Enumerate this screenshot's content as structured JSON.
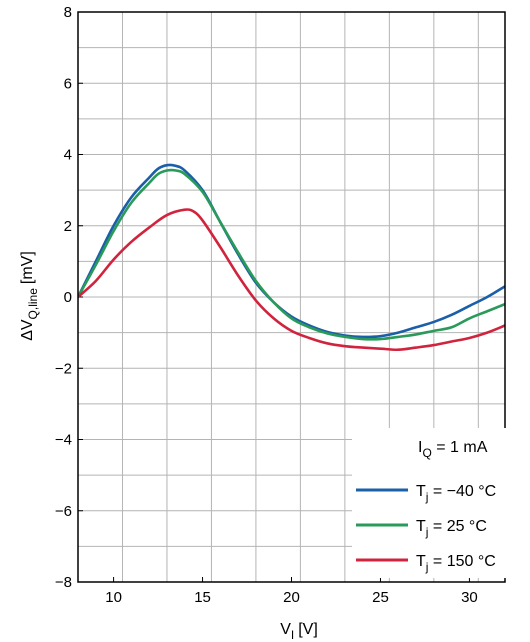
{
  "chart_data": {
    "type": "line",
    "xlabel": {
      "main": "V",
      "sub": "I",
      "unit": "[V]"
    },
    "ylabel": {
      "main": "ΔV",
      "sub": "Q,line",
      "unit": "[mV]"
    },
    "xlim": [
      8,
      32
    ],
    "ylim": [
      -8,
      8
    ],
    "x_ticks": [
      {
        "value": 10,
        "label": "10"
      },
      {
        "value": 15,
        "label": "15"
      },
      {
        "value": 20,
        "label": "20"
      },
      {
        "value": 25,
        "label": "25"
      },
      {
        "value": 30,
        "label": "30"
      }
    ],
    "y_ticks": [
      {
        "value": 8,
        "label": "8"
      },
      {
        "value": 6,
        "label": "6"
      },
      {
        "value": 4,
        "label": "4"
      },
      {
        "value": 2,
        "label": "2"
      },
      {
        "value": 0,
        "label": "0"
      },
      {
        "value": -2,
        "label": "−2"
      },
      {
        "value": -4,
        "label": "−4"
      },
      {
        "value": -6,
        "label": "−6"
      },
      {
        "value": -8,
        "label": "−8"
      }
    ],
    "grid": true,
    "legend": {
      "placement": "bottom-right",
      "header": {
        "main": "I",
        "sub": "Q",
        "rest": " = 1 mA"
      }
    },
    "series": [
      {
        "name": "T_j = −40 °C",
        "label_main": "T",
        "label_sub": "j",
        "label_rest": " = −40 °C",
        "color": "#1a5fa8",
        "x": [
          8,
          9,
          10,
          11,
          12,
          12.5,
          13,
          13.5,
          14,
          15,
          16,
          17,
          18,
          19,
          20,
          21,
          22,
          23,
          24,
          25,
          26,
          27,
          28,
          29,
          30,
          31,
          32
        ],
        "y": [
          0,
          1.0,
          2.0,
          2.8,
          3.35,
          3.6,
          3.7,
          3.68,
          3.55,
          3.0,
          2.1,
          1.2,
          0.4,
          -0.15,
          -0.55,
          -0.8,
          -0.98,
          -1.08,
          -1.12,
          -1.1,
          -1.0,
          -0.85,
          -0.7,
          -0.5,
          -0.25,
          0.0,
          0.3
        ]
      },
      {
        "name": "T_j = 25 °C",
        "label_main": "T",
        "label_sub": "j",
        "label_rest": " = 25 °C",
        "color": "#2a9a5a",
        "x": [
          8,
          9,
          10,
          11,
          12,
          12.5,
          13,
          13.5,
          14,
          15,
          16,
          17,
          18,
          19,
          20,
          21,
          22,
          23,
          24,
          25,
          26,
          27,
          28,
          29,
          30,
          31,
          32
        ],
        "y": [
          0,
          0.9,
          1.85,
          2.65,
          3.2,
          3.45,
          3.55,
          3.55,
          3.45,
          2.95,
          2.1,
          1.25,
          0.45,
          -0.15,
          -0.6,
          -0.85,
          -1.02,
          -1.12,
          -1.18,
          -1.18,
          -1.12,
          -1.05,
          -0.95,
          -0.85,
          -0.6,
          -0.4,
          -0.2
        ]
      },
      {
        "name": "T_j = 150 °C",
        "label_main": "T",
        "label_sub": "j",
        "label_rest": " = 150 °C",
        "color": "#d0243e",
        "x": [
          8,
          9,
          10,
          11,
          12,
          13,
          14,
          14.5,
          15,
          16,
          17,
          18,
          19,
          20,
          21,
          22,
          23,
          24,
          25,
          26,
          27,
          28,
          29,
          30,
          31,
          32
        ],
        "y": [
          0,
          0.45,
          1.05,
          1.55,
          1.95,
          2.3,
          2.45,
          2.4,
          2.15,
          1.4,
          0.6,
          -0.1,
          -0.6,
          -0.95,
          -1.15,
          -1.3,
          -1.38,
          -1.42,
          -1.45,
          -1.48,
          -1.42,
          -1.35,
          -1.25,
          -1.15,
          -1.0,
          -0.8
        ]
      }
    ]
  }
}
